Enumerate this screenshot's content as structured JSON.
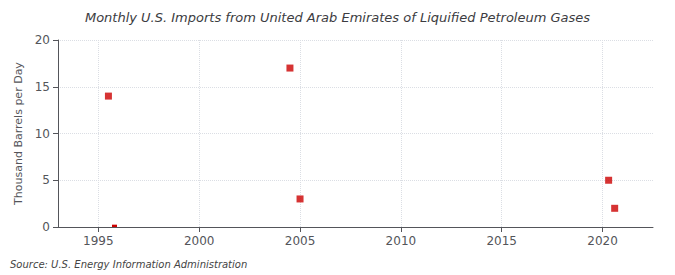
{
  "chart_data": {
    "type": "scatter",
    "title": "Monthly U.S. Imports from United Arab Emirates of Liquified Petroleum Gases",
    "ylabel": "Thousand Barrels per Day",
    "annotation": "Source: U.S. Energy Information Administration",
    "xlim": [
      1993,
      2022.5
    ],
    "xticks": [
      1995,
      2000,
      2005,
      2010,
      2015,
      2020
    ],
    "ylim": [
      0,
      20
    ],
    "yticks": [
      0,
      5,
      10,
      15,
      20
    ],
    "grid": true,
    "series": [
      {
        "type": "bar",
        "color": "#cc0000",
        "x": [
          1995.8
        ],
        "values": [
          0.25
        ]
      },
      {
        "type": "scatter",
        "color": "#cc0000",
        "marker": "square",
        "x": [
          1995.5,
          2004.5,
          2005.0,
          2020.3,
          2020.6
        ],
        "values": [
          14.0,
          17.0,
          3.0,
          5.0,
          2.0
        ]
      }
    ]
  }
}
